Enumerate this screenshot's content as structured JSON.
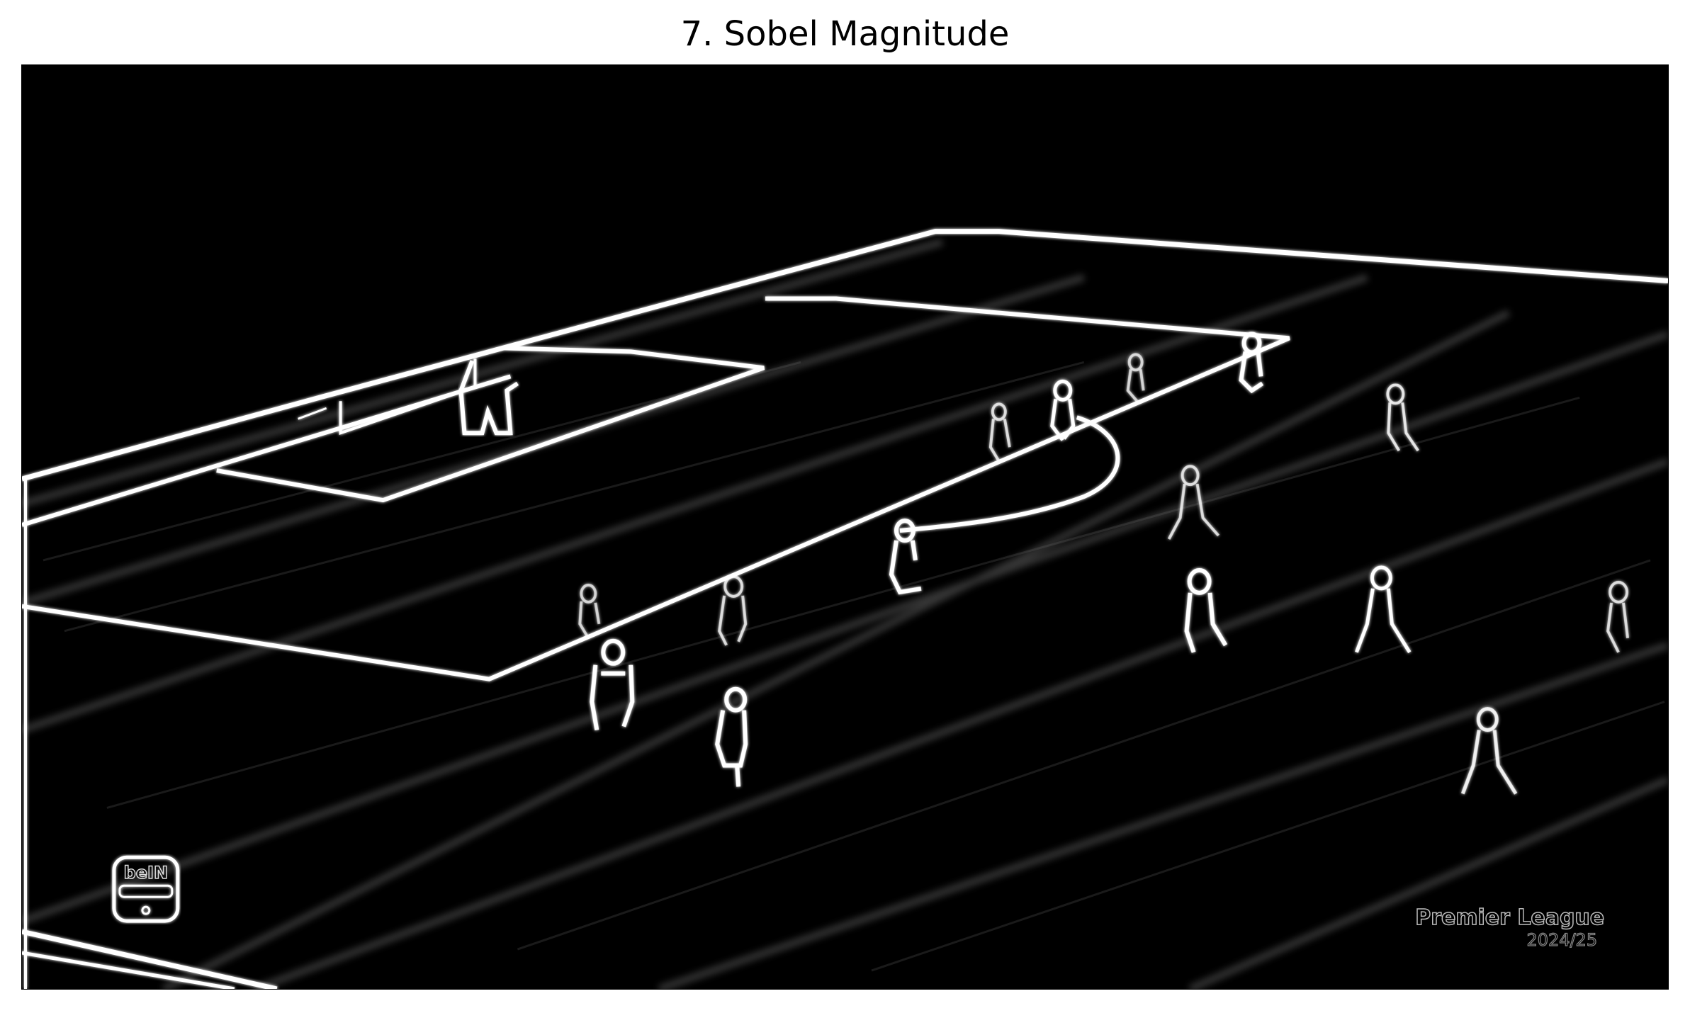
{
  "figure": {
    "title": "7. Sobel Magnitude"
  },
  "image": {
    "background_color": "#000000",
    "edge_color": "#ffffff",
    "overlay": {
      "logo_text": "beIN",
      "league_text": "Premier League",
      "league_subtext": "2024/25"
    }
  }
}
